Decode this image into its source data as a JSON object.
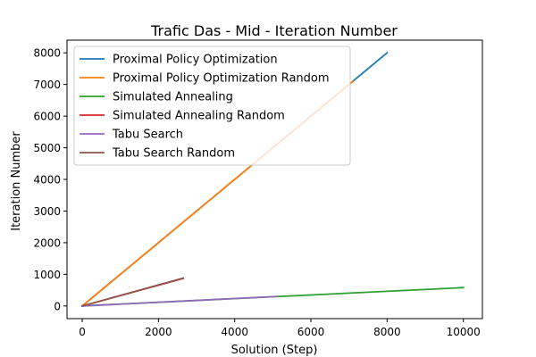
{
  "chart_data": {
    "type": "line",
    "title": "Trafic Das - Mid - Iteration Number",
    "xlabel": "Solution (Step)",
    "ylabel": "Iteration Number",
    "xlim": [
      -400,
      10500
    ],
    "ylim": [
      -400,
      8400
    ],
    "xticks": [
      0,
      2000,
      4000,
      6000,
      8000,
      10000
    ],
    "yticks": [
      0,
      1000,
      2000,
      3000,
      4000,
      5000,
      6000,
      7000,
      8000
    ],
    "grid": false,
    "legend_position": "upper-left",
    "series": [
      {
        "name": "Proximal Policy Optimization",
        "color": "#1f77b4",
        "x": [
          0,
          8000
        ],
        "y": [
          0,
          8000
        ]
      },
      {
        "name": "Proximal Policy Optimization Random",
        "color": "#ff7f0e",
        "x": [
          0,
          7100
        ],
        "y": [
          0,
          7100
        ]
      },
      {
        "name": "Simulated Annealing",
        "color": "#2ca02c",
        "x": [
          0,
          10000
        ],
        "y": [
          0,
          580
        ]
      },
      {
        "name": "Simulated Annealing Random",
        "color": "#d62728",
        "x": [
          0,
          2650
        ],
        "y": [
          0,
          870
        ]
      },
      {
        "name": "Tabu Search",
        "color": "#9467bd",
        "x": [
          0,
          5100
        ],
        "y": [
          0,
          300
        ]
      },
      {
        "name": "Tabu Search Random",
        "color": "#8c564b",
        "x": [
          0,
          2650
        ],
        "y": [
          0,
          880
        ]
      }
    ]
  }
}
